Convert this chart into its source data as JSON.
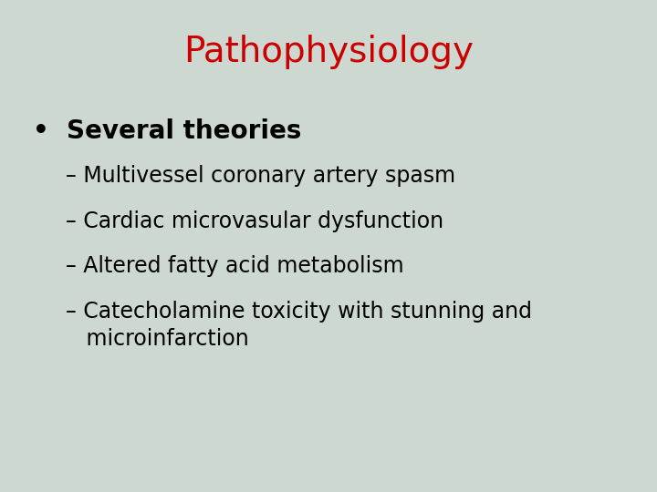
{
  "title": "Pathophysiology",
  "title_color": "#cc0000",
  "title_fontsize": 28,
  "background_color": "#ccd8d0",
  "bullet_text": "Several theories",
  "bullet_fontsize": 20,
  "bullet_color": "#000000",
  "sub_items": [
    "– Multivessel coronary artery spasm",
    "– Cardiac microvasular dysfunction",
    "– Altered fatty acid metabolism",
    "– Catecholamine toxicity with stunning and\n   microinfarction"
  ],
  "sub_fontsize": 17,
  "sub_color": "#000000",
  "fig_width": 7.2,
  "fig_height": 5.4,
  "dpi": 100
}
